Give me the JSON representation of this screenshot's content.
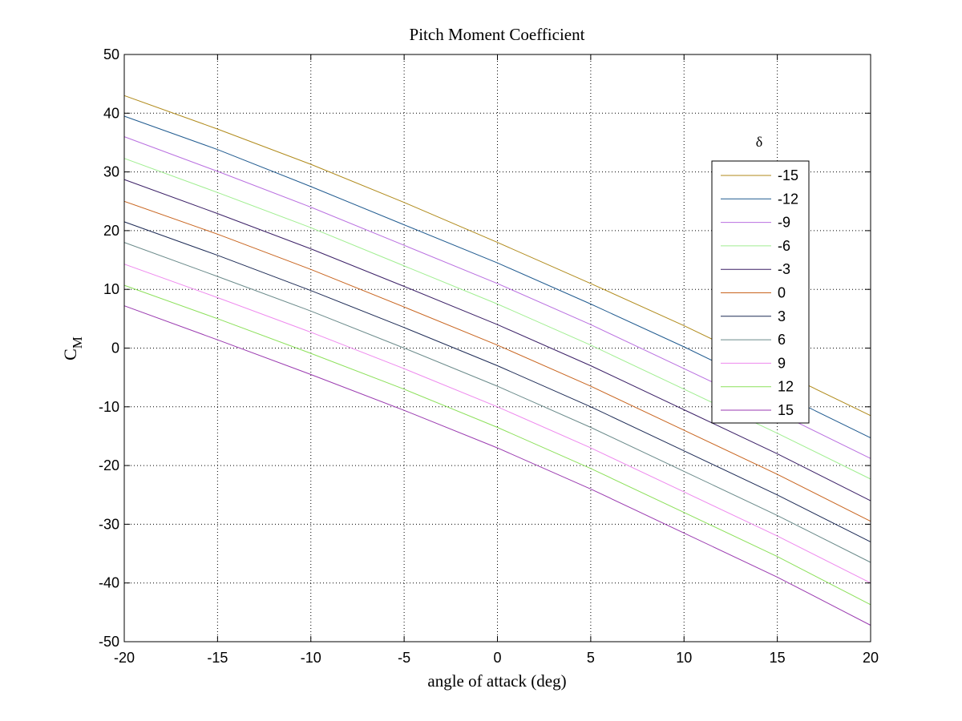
{
  "chart_data": {
    "type": "line",
    "title": "Pitch Moment Coefficient",
    "xlabel": "angle of attack (deg)",
    "ylabel_main": "C",
    "ylabel_sub": "M",
    "xlim": [
      -20,
      20
    ],
    "ylim": [
      -50,
      50
    ],
    "x_ticks": [
      "-20",
      "-15",
      "-10",
      "-5",
      "0",
      "5",
      "10",
      "15",
      "20"
    ],
    "y_ticks": [
      "50",
      "40",
      "30",
      "20",
      "10",
      "0",
      "-10",
      "-20",
      "-30",
      "-40",
      "-50"
    ],
    "grid": true,
    "legend_title": "δ",
    "legend_position": "right",
    "x": [
      -20,
      -15,
      -10,
      -5,
      0,
      5,
      10,
      15,
      20
    ],
    "series": [
      {
        "name": "-15",
        "color": "#b08a1a",
        "values": [
          43.0,
          37.3,
          31.3,
          24.8,
          18.0,
          11.0,
          3.8,
          -3.8,
          -11.5
        ]
      },
      {
        "name": "-12",
        "color": "#1f5a8f",
        "values": [
          39.5,
          33.8,
          27.5,
          21.0,
          14.5,
          7.5,
          0.2,
          -7.5,
          -15.3
        ]
      },
      {
        "name": "-9",
        "color": "#b96fe0",
        "values": [
          36.0,
          30.1,
          24.0,
          17.5,
          11.0,
          4.0,
          -3.5,
          -11.0,
          -18.8
        ]
      },
      {
        "name": "-6",
        "color": "#a0ee90",
        "values": [
          32.3,
          26.5,
          20.5,
          14.0,
          7.5,
          0.5,
          -7.0,
          -14.5,
          -22.3
        ]
      },
      {
        "name": "-3",
        "color": "#3a1f66",
        "values": [
          28.7,
          22.9,
          16.9,
          10.5,
          4.0,
          -3.0,
          -10.5,
          -18.0,
          -26.0
        ]
      },
      {
        "name": "0",
        "color": "#c8641e",
        "values": [
          25.0,
          19.4,
          13.4,
          7.0,
          0.5,
          -6.5,
          -14.0,
          -21.5,
          -29.5
        ]
      },
      {
        "name": "3",
        "color": "#1c2a55",
        "values": [
          21.5,
          15.8,
          9.8,
          3.5,
          -3.0,
          -10.0,
          -17.5,
          -25.0,
          -33.0
        ]
      },
      {
        "name": "6",
        "color": "#6a8a8a",
        "values": [
          18.0,
          12.2,
          6.3,
          0.0,
          -6.5,
          -13.5,
          -21.0,
          -28.5,
          -36.5
        ]
      },
      {
        "name": "9",
        "color": "#ee88ee",
        "values": [
          14.3,
          8.6,
          2.7,
          -3.5,
          -10.0,
          -17.0,
          -24.5,
          -32.0,
          -40.0
        ]
      },
      {
        "name": "12",
        "color": "#8ce05a",
        "values": [
          10.7,
          5.0,
          -0.9,
          -7.0,
          -13.5,
          -20.5,
          -28.0,
          -35.5,
          -43.7
        ]
      },
      {
        "name": "15",
        "color": "#9a3ab0",
        "values": [
          7.2,
          1.4,
          -4.5,
          -10.6,
          -17.0,
          -24.0,
          -31.5,
          -39.0,
          -47.2
        ]
      }
    ]
  }
}
